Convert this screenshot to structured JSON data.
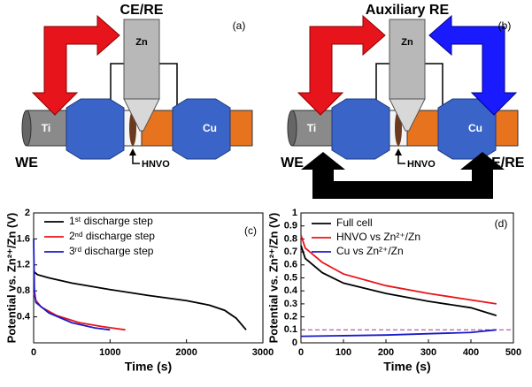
{
  "panel_a": {
    "title": "CE/RE",
    "label": "(a)",
    "electrode": "Zn",
    "left": "Ti",
    "right": "Cu",
    "we": "WE",
    "sample": "HNVO"
  },
  "panel_b": {
    "title": "Auxiliary RE",
    "label": "(b)",
    "electrode": "Zn",
    "left": "Ti",
    "right": "Cu",
    "we": "WE",
    "ce": "CE/RE",
    "sample": "HNVO"
  },
  "chart_data": [
    {
      "type": "line",
      "label": "(c)",
      "x_label": "Time (s)",
      "y_label": "Potential vs. Zn²⁺/Zn (V)",
      "xlim": [
        0,
        3000
      ],
      "xticks": [
        0,
        1000,
        2000,
        3000
      ],
      "ylim": [
        0,
        2
      ],
      "yticks": [
        0.4,
        0.8,
        1.2,
        1.6,
        2
      ],
      "series": [
        {
          "name": "1ˢᵗ discharge step",
          "color": "#000000",
          "x": [
            0,
            50,
            200,
            500,
            1000,
            1500,
            2000,
            2300,
            2500,
            2650,
            2780
          ],
          "values": [
            1.1,
            1.05,
            1.0,
            0.92,
            0.82,
            0.73,
            0.65,
            0.58,
            0.5,
            0.38,
            0.2
          ]
        },
        {
          "name": "2ⁿᵈ discharge step",
          "color": "#e8141b",
          "x": [
            0,
            30,
            100,
            300,
            600,
            900,
            1200
          ],
          "values": [
            0.78,
            0.65,
            0.55,
            0.42,
            0.31,
            0.25,
            0.2
          ]
        },
        {
          "name": "3ʳᵈ discharge step",
          "color": "#1a1ac8",
          "x": [
            0,
            10,
            30,
            200,
            500,
            800,
            1000
          ],
          "values": [
            1.6,
            0.8,
            0.62,
            0.46,
            0.31,
            0.23,
            0.2
          ]
        }
      ]
    },
    {
      "type": "line",
      "label": "(d)",
      "x_label": "Time (s)",
      "y_label": "Potential vs. Zn²⁺/Zn (V)",
      "xlim": [
        0,
        500
      ],
      "xticks": [
        0,
        100,
        200,
        300,
        400,
        500
      ],
      "ylim": [
        0,
        1
      ],
      "yticks": [
        0,
        0.1,
        0.2,
        0.3,
        0.4,
        0.5,
        0.6,
        0.7,
        0.8,
        0.9,
        1
      ],
      "hline": 0.1,
      "hline_color": "#9b3c8c",
      "series": [
        {
          "name": "Full cell",
          "color": "#000000",
          "x": [
            0,
            10,
            50,
            100,
            200,
            300,
            400,
            460
          ],
          "values": [
            0.75,
            0.65,
            0.54,
            0.46,
            0.38,
            0.32,
            0.27,
            0.21
          ]
        },
        {
          "name": "HNVO vs Zn²⁺/Zn",
          "color": "#e8141b",
          "x": [
            0,
            10,
            50,
            100,
            200,
            300,
            400,
            460
          ],
          "values": [
            0.83,
            0.73,
            0.62,
            0.53,
            0.44,
            0.38,
            0.33,
            0.3
          ]
        },
        {
          "name": "Cu vs Zn²⁺/Zn",
          "color": "#1a1ac8",
          "x": [
            0,
            100,
            200,
            300,
            400,
            460
          ],
          "values": [
            0.05,
            0.055,
            0.06,
            0.07,
            0.08,
            0.1
          ]
        }
      ]
    }
  ]
}
